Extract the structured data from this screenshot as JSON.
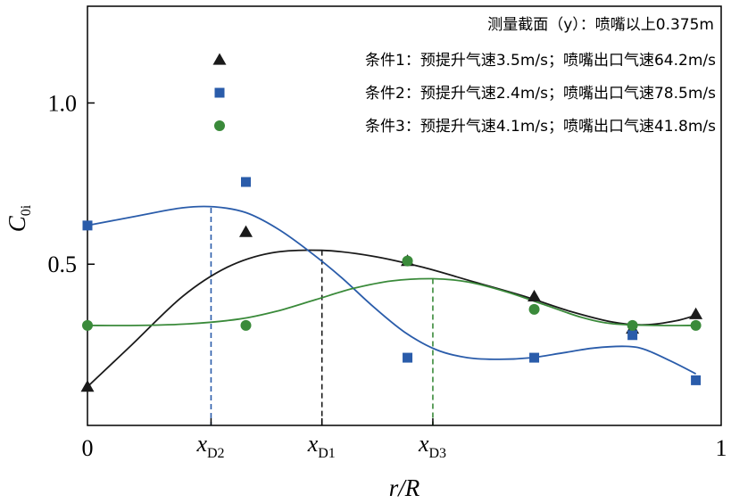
{
  "chart_data": {
    "type": "scatter",
    "xlabel": "r/R",
    "ylabel": {
      "main": "C",
      "sub": "0i"
    },
    "xlim": [
      0,
      1
    ],
    "ylim": [
      0,
      1.3
    ],
    "x_tick_labels": [
      {
        "value": 0,
        "label": "0"
      },
      {
        "value": 1,
        "label": "1"
      }
    ],
    "y_tick_labels": [
      {
        "value": 0.5,
        "label": "0.5"
      },
      {
        "value": 1.0,
        "label": "1.0"
      }
    ],
    "legend": {
      "placement": "top-right",
      "header": "测量截面（y）：喷嘴以上0.375m",
      "entries": [
        {
          "series": 0,
          "label": "条件1：预提升气速3.5m/s；喷嘴出口气速64.2m/s"
        },
        {
          "series": 1,
          "label": "条件2：预提升气速2.4m/s；喷嘴出口气速78.5m/s"
        },
        {
          "series": 2,
          "label": "条件3：预提升气速4.1m/s；喷嘴出口气速41.8m/s"
        }
      ]
    },
    "series": [
      {
        "name": "条件1",
        "marker": "triangle",
        "color": "#1a1a1a",
        "points": [
          [
            0,
            0.12
          ],
          [
            0.25,
            0.6
          ],
          [
            0.505,
            0.51
          ],
          [
            0.705,
            0.4
          ],
          [
            0.86,
            0.3
          ],
          [
            0.96,
            0.345
          ]
        ],
        "fit": [
          [
            0,
            0.12
          ],
          [
            0.07,
            0.25
          ],
          [
            0.15,
            0.4
          ],
          [
            0.22,
            0.49
          ],
          [
            0.29,
            0.535
          ],
          [
            0.37,
            0.543
          ],
          [
            0.45,
            0.525
          ],
          [
            0.53,
            0.49
          ],
          [
            0.61,
            0.445
          ],
          [
            0.69,
            0.4
          ],
          [
            0.76,
            0.355
          ],
          [
            0.83,
            0.32
          ],
          [
            0.88,
            0.312
          ],
          [
            0.93,
            0.325
          ],
          [
            0.965,
            0.345
          ]
        ]
      },
      {
        "name": "条件2",
        "marker": "square",
        "color": "#2a5caa",
        "points": [
          [
            0,
            0.62
          ],
          [
            0.25,
            0.755
          ],
          [
            0.505,
            0.21
          ],
          [
            0.705,
            0.21
          ],
          [
            0.86,
            0.28
          ],
          [
            0.96,
            0.14
          ]
        ],
        "fit": [
          [
            0,
            0.62
          ],
          [
            0.08,
            0.65
          ],
          [
            0.15,
            0.675
          ],
          [
            0.2,
            0.678
          ],
          [
            0.25,
            0.66
          ],
          [
            0.3,
            0.61
          ],
          [
            0.35,
            0.54
          ],
          [
            0.4,
            0.46
          ],
          [
            0.45,
            0.37
          ],
          [
            0.5,
            0.29
          ],
          [
            0.55,
            0.235
          ],
          [
            0.6,
            0.21
          ],
          [
            0.65,
            0.205
          ],
          [
            0.7,
            0.21
          ],
          [
            0.75,
            0.225
          ],
          [
            0.8,
            0.24
          ],
          [
            0.85,
            0.245
          ],
          [
            0.88,
            0.235
          ],
          [
            0.92,
            0.2
          ],
          [
            0.96,
            0.16
          ]
        ]
      },
      {
        "name": "条件3",
        "marker": "circle",
        "color": "#3a8a3a",
        "points": [
          [
            0,
            0.31
          ],
          [
            0.25,
            0.31
          ],
          [
            0.505,
            0.51
          ],
          [
            0.705,
            0.36
          ],
          [
            0.86,
            0.31
          ],
          [
            0.96,
            0.31
          ]
        ],
        "fit": [
          [
            0,
            0.31
          ],
          [
            0.08,
            0.31
          ],
          [
            0.16,
            0.315
          ],
          [
            0.24,
            0.33
          ],
          [
            0.3,
            0.355
          ],
          [
            0.36,
            0.39
          ],
          [
            0.42,
            0.425
          ],
          [
            0.48,
            0.448
          ],
          [
            0.545,
            0.455
          ],
          [
            0.6,
            0.445
          ],
          [
            0.66,
            0.415
          ],
          [
            0.72,
            0.375
          ],
          [
            0.78,
            0.335
          ],
          [
            0.83,
            0.315
          ],
          [
            0.9,
            0.31
          ],
          [
            0.96,
            0.31
          ]
        ]
      }
    ],
    "reference_lines": [
      {
        "x": 0.195,
        "ymax": 0.675,
        "color": "#2a5caa",
        "label_main": "x",
        "label_sub": "D2"
      },
      {
        "x": 0.37,
        "ymax": 0.543,
        "color": "#1a1a1a",
        "label_main": "x",
        "label_sub": "D1"
      },
      {
        "x": 0.545,
        "ymax": 0.455,
        "color": "#3a8a3a",
        "label_main": "x",
        "label_sub": "D3"
      }
    ]
  }
}
